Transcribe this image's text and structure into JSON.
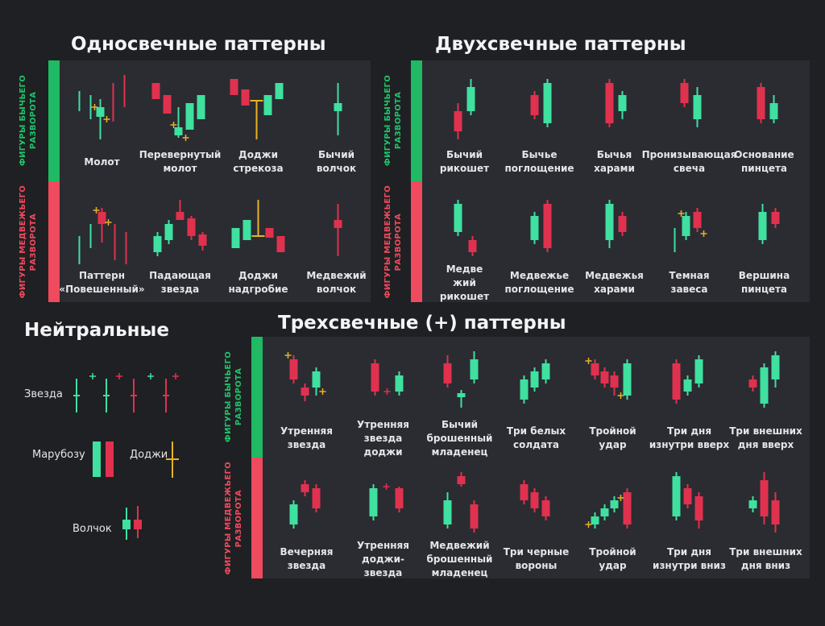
{
  "colors": {
    "bull": "#3fe0a0",
    "bear": "#e0314f",
    "doji": "#e9b128",
    "bar_bull": "#1fba63",
    "bar_bear": "#ef4a5d",
    "panel": "#2a2c31",
    "background": "#1f2023"
  },
  "side_labels": {
    "bull": "ФИГУРЫ БЫЧЬЕГО\nРАЗВОРОТА",
    "bear": "ФИГУРЫ МЕДВЕЖЬЕГО\nРАЗВОРОТА"
  },
  "single": {
    "title": "Односвечные паттерны",
    "bull": [
      "Молот",
      "Перевернутый\nмолот",
      "Доджи\nстрекоза",
      "Бычий\nволчок"
    ],
    "bear": [
      "Паттерн\n«Повешенный»",
      "Падающая\nзвезда",
      "Доджи\nнадгробие",
      "Медвежий\nволчок"
    ]
  },
  "double": {
    "title": "Двухсвечные паттерны",
    "bull": [
      "Бычий\nрикошет",
      "Бычье\nпоглощение",
      "Бычья\nхарами",
      "Пронизывающая\nсвеча",
      "Основание\nпинцета"
    ],
    "bear": [
      "Медве\nжий\nрикошет",
      "Медвежье\nпоглощение",
      "Медвежья\nхарами",
      "Темная\nзавеса",
      "Вершина\nпинцета"
    ]
  },
  "triple": {
    "title": "Трехсвечные (+) паттерны",
    "bull": [
      "Утренняя\nзвезда",
      "Утренняя\nзвезда\nдоджи",
      "Бычий\nброшенный\nмладенец",
      "Три белых\nсолдата",
      "Тройной\nудар",
      "Три дня\nизнутри вверх",
      "Три внешних\nдня вверх"
    ],
    "bear": [
      "Вечерняя\nзвезда",
      "Утренняя\nдоджи-\nзвезда",
      "Медвежий\nброшенный\nмладенец",
      "Три черные\nвороны",
      "Тройной\nудар",
      "Три дня\nизнутри вниз",
      "Три внешних\nдня вниз"
    ]
  },
  "neutral": {
    "title": "Нейтральные",
    "star": "Звезда",
    "marubozu": "Марубозу",
    "doji": "Доджи",
    "spinning_top": "Волчок"
  }
}
